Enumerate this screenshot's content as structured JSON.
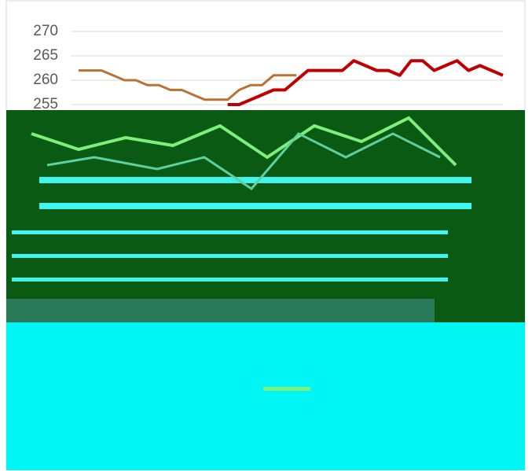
{
  "chart_data": {
    "type": "line",
    "categories": [
      null,
      null,
      null,
      null,
      null,
      null,
      null,
      null,
      null,
      null,
      null,
      null,
      null,
      null,
      null,
      null,
      null,
      null,
      null,
      null,
      null,
      null,
      null,
      null,
      null,
      null,
      null,
      null,
      null,
      null,
      null,
      null,
      null,
      null,
      null,
      null,
      null,
      null
    ],
    "series": [
      {
        "color": "#b87333",
        "values": [
          262,
          262,
          262,
          261,
          260,
          260,
          259,
          259,
          258,
          258,
          257,
          256,
          256,
          256,
          258,
          259,
          259,
          261,
          261,
          261,
          null,
          null,
          null,
          null,
          null,
          null,
          null,
          null,
          null,
          null,
          null,
          null,
          null,
          null,
          null,
          null,
          null,
          null
        ]
      },
      {
        "color": "#c00000",
        "values": [
          null,
          null,
          null,
          null,
          null,
          null,
          null,
          null,
          null,
          null,
          null,
          null,
          null,
          255,
          255,
          256,
          257,
          258,
          258,
          260,
          262,
          262,
          262,
          262,
          264,
          263,
          262,
          262,
          261,
          264,
          264,
          262,
          263,
          264,
          262,
          263,
          262,
          261
        ]
      }
    ],
    "ylim": [
      255,
      270
    ],
    "yticks": [
      255,
      260,
      265,
      270
    ],
    "grid": true
  }
}
